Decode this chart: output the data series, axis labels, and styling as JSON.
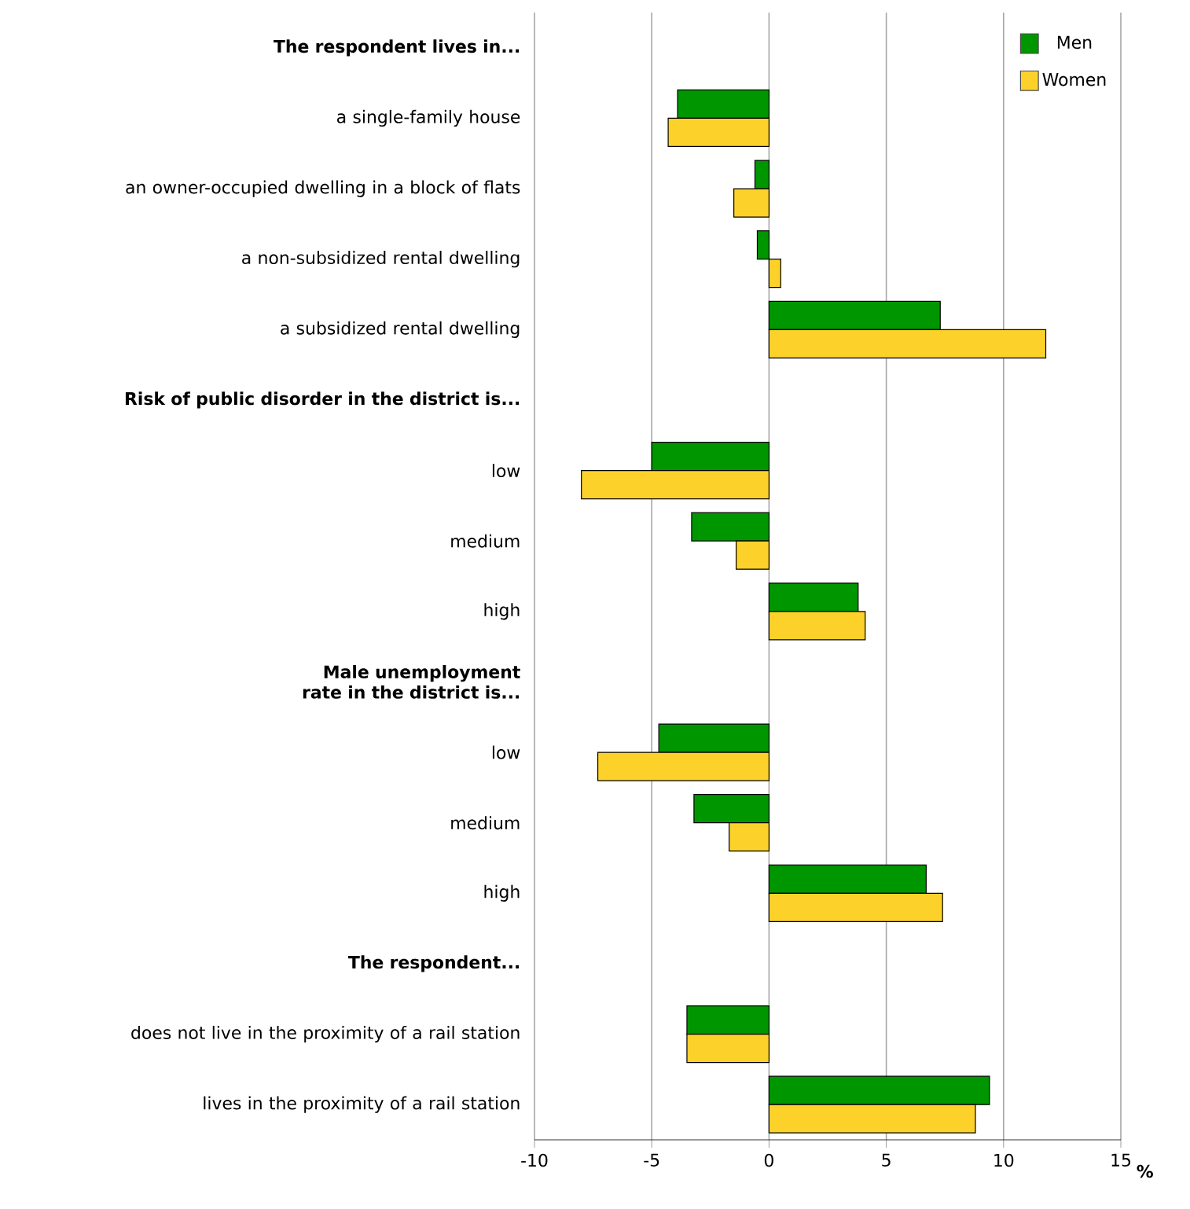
{
  "chart_data": {
    "type": "bar",
    "orientation": "horizontal",
    "categories": [
      "The respondent lives in...",
      "a single-family house",
      "an owner-occupied dwelling in a block of flats",
      "a non-subsidized rental dwelling",
      "a subsidized rental dwelling",
      "Risk of public disorder in the district is...",
      "low",
      "medium",
      "high",
      "Male unemployment rate in the district is...",
      "low",
      "medium",
      "high",
      "The respondent...",
      "does not live in the proximity of a rail station",
      "lives in the proximity of a rail station"
    ],
    "series": [
      {
        "name": "Men",
        "color": "#009600",
        "values": [
          null,
          -3.9,
          -0.6,
          -0.5,
          7.3,
          null,
          -5.0,
          -3.3,
          3.8,
          null,
          -4.7,
          -3.2,
          6.7,
          null,
          -3.5,
          9.4
        ]
      },
      {
        "name": "Women",
        "color": "#fcd22a",
        "values": [
          null,
          -4.3,
          -1.5,
          0.5,
          11.8,
          null,
          -8.0,
          -1.4,
          4.1,
          null,
          -7.3,
          -1.7,
          7.4,
          null,
          -3.5,
          8.8
        ]
      }
    ],
    "xlim": [
      -10,
      15
    ],
    "xticks": [
      -10,
      -5,
      0,
      5,
      10,
      15
    ],
    "xlabel": "%",
    "grid": "x",
    "legend": "top right"
  }
}
